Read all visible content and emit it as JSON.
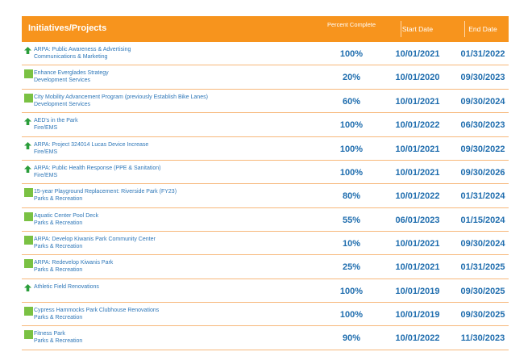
{
  "header": {
    "initiatives": "Initiatives/Projects",
    "percent": "Percent Complete",
    "start": "Start Date",
    "end": "End Date"
  },
  "colors": {
    "accent": "#f7941d",
    "text": "#2e77b8",
    "green": "#7ac143"
  },
  "rows": [
    {
      "icon": "up-arrow-icon",
      "title": "ARPA: Public Awareness & Advertising",
      "dept": "Communications & Marketing",
      "pct": "100%",
      "start": "10/01/2021",
      "end": "01/31/2022"
    },
    {
      "icon": "green-square-icon",
      "title": "Enhance Everglades Strategy",
      "dept": "Development Services",
      "pct": "20%",
      "start": "10/01/2020",
      "end": "09/30/2023"
    },
    {
      "icon": "green-square-icon",
      "title": "City Mobility Advancement Program (previously Establish Bike Lanes)",
      "dept": "Development Services",
      "pct": "60%",
      "start": "10/01/2021",
      "end": "09/30/2024"
    },
    {
      "icon": "up-arrow-icon",
      "title": "AED's in the Park",
      "dept": "Fire/EMS",
      "pct": "100%",
      "start": "10/01/2022",
      "end": "06/30/2023"
    },
    {
      "icon": "up-arrow-icon",
      "title": "ARPA: Project 324014 Lucas Device Increase",
      "dept": "Fire/EMS",
      "pct": "100%",
      "start": "10/01/2021",
      "end": "09/30/2022"
    },
    {
      "icon": "up-arrow-icon",
      "title": "ARPA: Public Health Response (PPE & Sanitation)",
      "dept": "Fire/EMS",
      "pct": "100%",
      "start": "10/01/2021",
      "end": "09/30/2026"
    },
    {
      "icon": "green-square-icon",
      "title": "15-year Playground Replacement: Riverside Park (FY23)",
      "dept": "Parks & Recreation",
      "pct": "80%",
      "start": "10/01/2022",
      "end": "01/31/2024"
    },
    {
      "icon": "green-square-icon",
      "title": "Aquatic Center Pool Deck",
      "dept": "Parks & Recreation",
      "pct": "55%",
      "start": "06/01/2023",
      "end": "01/15/2024"
    },
    {
      "icon": "green-square-icon",
      "title": "ARPA: Develop Kiwanis Park Community Center",
      "dept": "Parks & Recreation",
      "pct": "10%",
      "start": "10/01/2021",
      "end": "09/30/2024"
    },
    {
      "icon": "green-square-icon",
      "title": "ARPA: Redevelop Kiwanis Park",
      "dept": "Parks & Recreation",
      "pct": "25%",
      "start": "10/01/2021",
      "end": "01/31/2025"
    },
    {
      "icon": "up-arrow-icon",
      "title": "Athletic Field Renovations",
      "dept": "",
      "pct": "100%",
      "start": "10/01/2019",
      "end": "09/30/2025"
    },
    {
      "icon": "green-square-icon",
      "title": "Cypress Hammocks Park Clubhouse Renovations",
      "dept": "Parks & Recreation",
      "pct": "100%",
      "start": "10/01/2019",
      "end": "09/30/2025"
    },
    {
      "icon": "green-square-icon",
      "title": "Fitness Park",
      "dept": "Parks & Recreation",
      "pct": "90%",
      "start": "10/01/2022",
      "end": "11/30/2023"
    }
  ]
}
